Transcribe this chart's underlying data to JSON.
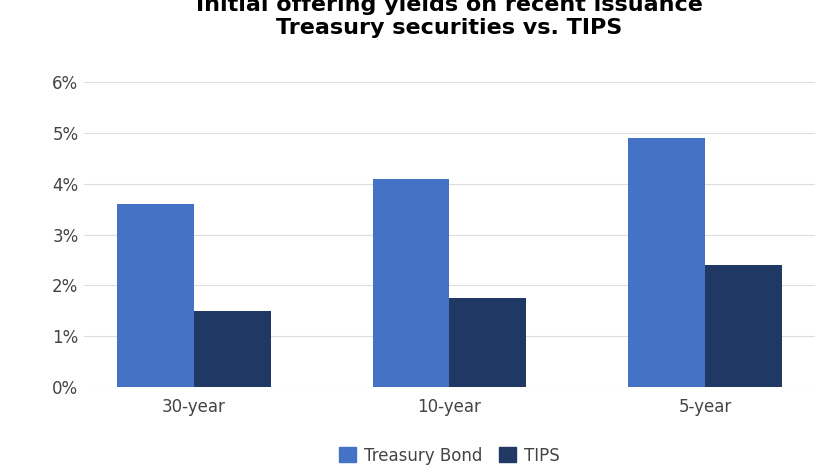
{
  "title": "Initial offering yields on recent issuance\nTreasury securities vs. TIPS",
  "categories": [
    "30-year",
    "10-year",
    "5-year"
  ],
  "treasury_values": [
    0.036,
    0.041,
    0.049
  ],
  "tips_values": [
    0.015,
    0.0175,
    0.024
  ],
  "treasury_color": "#4472C4",
  "tips_color": "#1F3864",
  "background_color": "#FFFFFF",
  "ylim": [
    0,
    0.065
  ],
  "yticks": [
    0.0,
    0.01,
    0.02,
    0.03,
    0.04,
    0.05,
    0.06
  ],
  "ytick_labels": [
    "0%",
    "1%",
    "2%",
    "3%",
    "4%",
    "5%",
    "6%"
  ],
  "bar_width": 0.3,
  "legend_labels": [
    "Treasury Bond",
    "TIPS"
  ],
  "title_fontsize": 16,
  "tick_fontsize": 12,
  "legend_fontsize": 12
}
